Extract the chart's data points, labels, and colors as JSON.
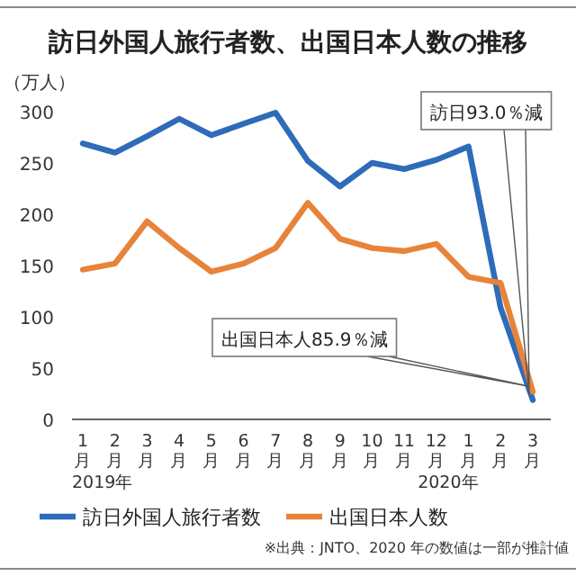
{
  "chart_data": {
    "type": "line",
    "title": "訪日外国人旅行者数、出国日本人数の推移",
    "ylabel": "（万人）",
    "categories": [
      "1月",
      "2月",
      "3月",
      "4月",
      "5月",
      "6月",
      "7月",
      "8月",
      "9月",
      "10月",
      "11月",
      "12月",
      "1月",
      "2月",
      "3月"
    ],
    "series": [
      {
        "name": "訪日外国人旅行者数",
        "color": "#2e6bb8",
        "values": [
          269,
          260,
          276,
          293,
          277,
          288,
          299,
          252,
          227,
          250,
          244,
          253,
          266,
          109,
          19
        ]
      },
      {
        "name": "出国日本人数",
        "color": "#e8833a",
        "values": [
          146,
          152,
          193,
          167,
          144,
          152,
          167,
          211,
          176,
          167,
          164,
          171,
          139,
          133,
          27
        ]
      }
    ],
    "ylim": [
      0,
      300
    ],
    "yticks": [
      0,
      50,
      100,
      150,
      200,
      250,
      300
    ],
    "grid": false,
    "legend": "bottom",
    "marker": "none",
    "line_style": "solid",
    "annotations": [
      "訪日93.0％減",
      "出国日本人85.9％減",
      "2019年",
      "2020年",
      "※出典：JNTO、2020 年の数値は一部が推計値"
    ]
  }
}
